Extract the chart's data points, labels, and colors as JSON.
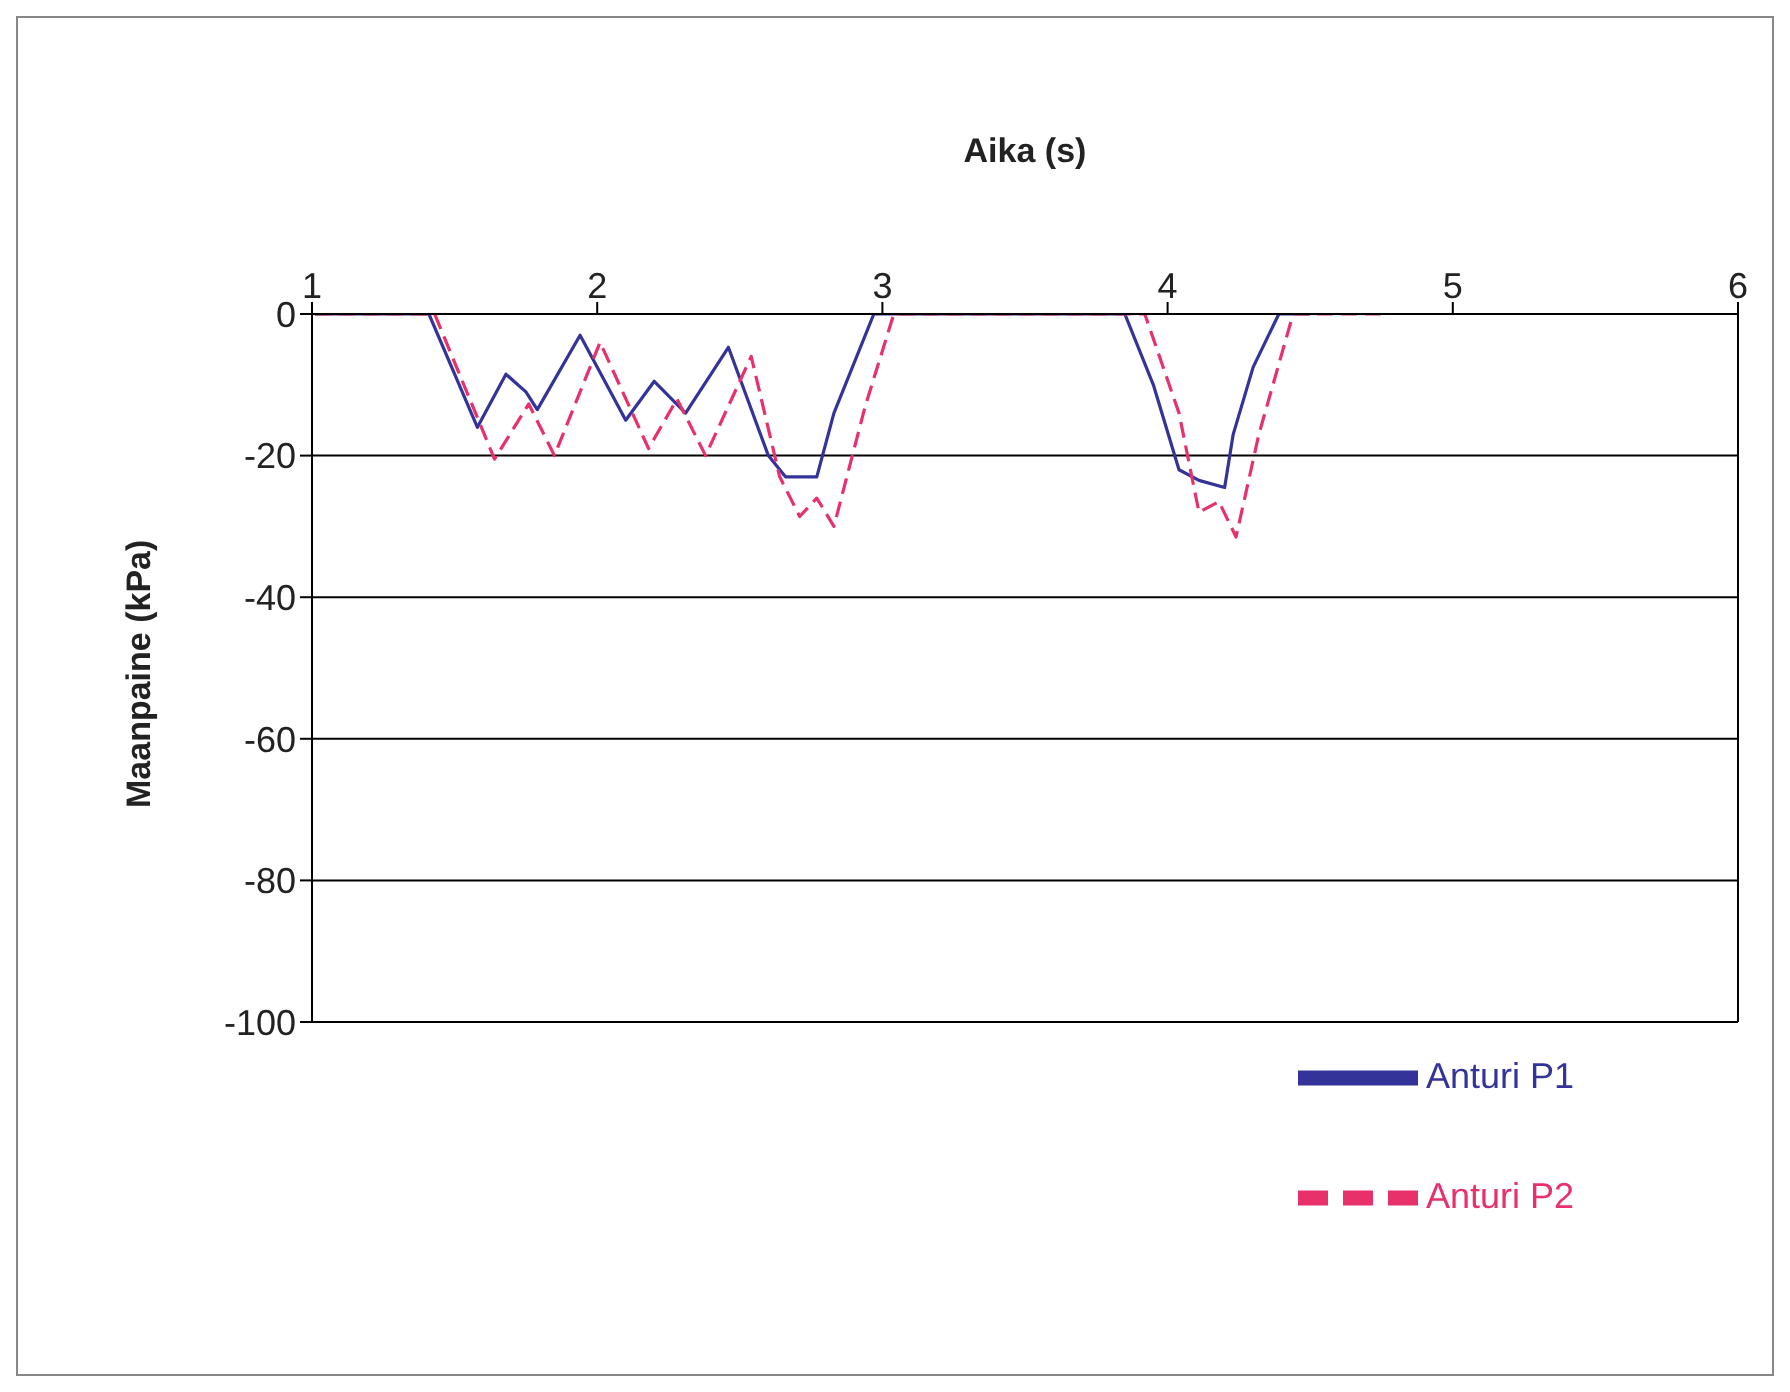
{
  "chart_data": {
    "type": "line",
    "xlabel": "Aika (s)",
    "ylabel": "Maanpaine (kPa)",
    "xlim": [
      1,
      6
    ],
    "xticks": [
      1,
      2,
      3,
      4,
      5,
      6
    ],
    "ylim": [
      -100,
      0
    ],
    "yticks": [
      -100,
      -80,
      -60,
      -40,
      -20,
      0
    ],
    "grid": "y",
    "legend": "bottom right",
    "series": [
      {
        "name": "Anturi P1",
        "color": "#333399",
        "line_style": "solid",
        "x": [
          1.01,
          1.41,
          1.58,
          1.68,
          1.75,
          1.79,
          1.94,
          2.1,
          2.2,
          2.31,
          2.46,
          2.6,
          2.66,
          2.77,
          2.83,
          2.97,
          3.85,
          3.95,
          4.04,
          4.11,
          4.2,
          4.23,
          4.3,
          4.39,
          4.5
        ],
        "values": [
          0,
          0,
          -16,
          -8.5,
          -11,
          -13.5,
          -3,
          -15,
          -9.5,
          -14,
          -4.7,
          -20,
          -23,
          -23,
          -14,
          0,
          0,
          -10,
          -22,
          -23.5,
          -24.5,
          -17,
          -7.5,
          0,
          0
        ]
      },
      {
        "name": "Anturi P2",
        "color": "#e8306a",
        "line_style": "dashed",
        "x": [
          1.01,
          1.43,
          1.64,
          1.76,
          1.85,
          2.01,
          2.18,
          2.28,
          2.38,
          2.54,
          2.64,
          2.71,
          2.77,
          2.83,
          2.94,
          3.04,
          3.92,
          4.04,
          4.11,
          4.18,
          4.24,
          4.32,
          4.44,
          4.77
        ],
        "values": [
          0,
          0,
          -20.5,
          -12.7,
          -20,
          -4,
          -19,
          -12,
          -20,
          -6,
          -23,
          -28.6,
          -26,
          -30,
          -13,
          0,
          0,
          -14,
          -28,
          -26.5,
          -31.5,
          -17,
          0,
          0
        ]
      }
    ]
  }
}
